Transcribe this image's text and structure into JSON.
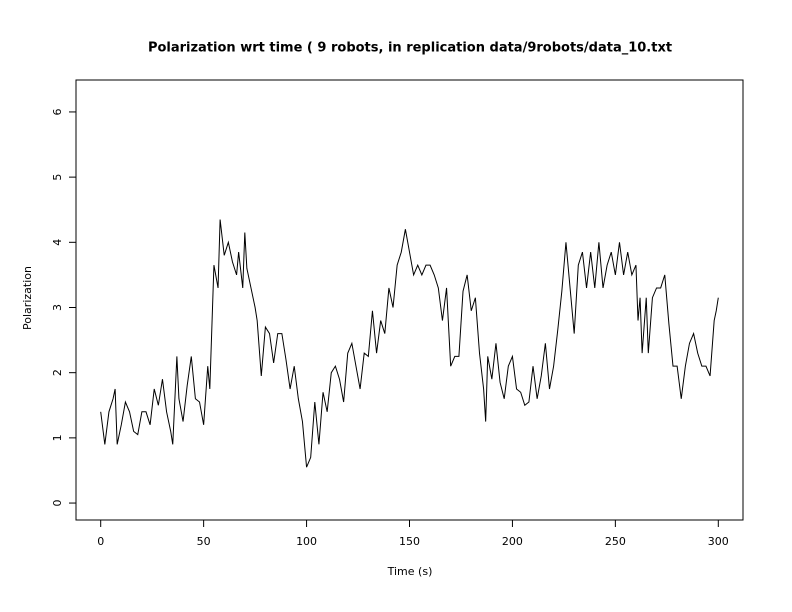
{
  "chart_data": {
    "type": "line",
    "title": "Polarization wrt time ( 9 robots, in replication  data/9robots/data_10.txt",
    "x_label": "Time (s)",
    "y_label": "Polarization",
    "xlim": [
      -12,
      312
    ],
    "ylim": [
      -0.26,
      6.49
    ],
    "xticks": [
      0,
      50,
      100,
      150,
      200,
      250,
      300
    ],
    "yticks": [
      0,
      1,
      2,
      3,
      4,
      5,
      6
    ],
    "series": [
      {
        "name": "Polarization",
        "color": "#000000",
        "x": [
          0,
          2,
          4,
          6,
          7,
          8,
          10,
          12,
          14,
          16,
          18,
          20,
          22,
          24,
          26,
          28,
          30,
          32,
          34,
          35,
          37,
          38,
          40,
          42,
          44,
          46,
          48,
          50,
          52,
          53,
          55,
          57,
          58,
          60,
          62,
          64,
          66,
          67,
          69,
          70,
          71,
          73,
          75,
          76,
          78,
          80,
          82,
          84,
          86,
          88,
          90,
          92,
          94,
          96,
          98,
          100,
          102,
          104,
          106,
          108,
          110,
          112,
          114,
          116,
          118,
          120,
          122,
          124,
          126,
          128,
          130,
          132,
          134,
          136,
          138,
          140,
          142,
          144,
          146,
          148,
          150,
          152,
          154,
          156,
          158,
          160,
          162,
          164,
          166,
          168,
          170,
          172,
          174,
          176,
          178,
          180,
          182,
          184,
          186,
          187,
          188,
          190,
          192,
          194,
          196,
          198,
          200,
          202,
          204,
          206,
          208,
          210,
          212,
          214,
          216,
          218,
          220,
          222,
          224,
          226,
          228,
          230,
          232,
          234,
          236,
          238,
          240,
          242,
          244,
          246,
          248,
          250,
          252,
          254,
          256,
          258,
          260,
          261,
          262,
          263,
          265,
          266,
          268,
          270,
          272,
          274,
          276,
          278,
          280,
          282,
          284,
          286,
          288,
          290,
          292,
          294,
          296,
          298,
          299,
          300
        ],
        "values": [
          1.4,
          0.9,
          1.4,
          1.6,
          1.75,
          0.9,
          1.2,
          1.55,
          1.4,
          1.1,
          1.05,
          1.4,
          1.4,
          1.2,
          1.75,
          1.5,
          1.9,
          1.4,
          1.1,
          0.9,
          2.25,
          1.6,
          1.25,
          1.8,
          2.25,
          1.6,
          1.55,
          1.2,
          2.1,
          1.75,
          3.65,
          3.3,
          4.35,
          3.8,
          4.0,
          3.7,
          3.5,
          3.85,
          3.3,
          4.15,
          3.6,
          3.3,
          3.0,
          2.8,
          1.95,
          2.7,
          2.6,
          2.15,
          2.6,
          2.6,
          2.2,
          1.75,
          2.1,
          1.6,
          1.25,
          0.55,
          0.7,
          1.55,
          0.9,
          1.7,
          1.4,
          2.0,
          2.1,
          1.9,
          1.55,
          2.3,
          2.45,
          2.1,
          1.75,
          2.3,
          2.25,
          2.95,
          2.3,
          2.8,
          2.6,
          3.3,
          3.0,
          3.65,
          3.85,
          4.2,
          3.85,
          3.5,
          3.65,
          3.5,
          3.65,
          3.65,
          3.5,
          3.3,
          2.8,
          3.3,
          2.1,
          2.25,
          2.25,
          3.25,
          3.5,
          2.95,
          3.15,
          2.3,
          1.75,
          1.25,
          2.25,
          1.9,
          2.45,
          1.85,
          1.6,
          2.1,
          2.25,
          1.75,
          1.7,
          1.5,
          1.55,
          2.1,
          1.6,
          1.95,
          2.45,
          1.75,
          2.1,
          2.65,
          3.25,
          4.0,
          3.3,
          2.6,
          3.65,
          3.85,
          3.3,
          3.85,
          3.3,
          4.0,
          3.3,
          3.65,
          3.85,
          3.5,
          4.0,
          3.5,
          3.85,
          3.5,
          3.65,
          2.8,
          3.15,
          2.3,
          3.15,
          2.3,
          3.15,
          3.3,
          3.3,
          3.5,
          2.75,
          2.1,
          2.1,
          1.6,
          2.1,
          2.45,
          2.6,
          2.3,
          2.1,
          2.1,
          1.95,
          2.8,
          2.95,
          3.15
        ]
      }
    ]
  }
}
